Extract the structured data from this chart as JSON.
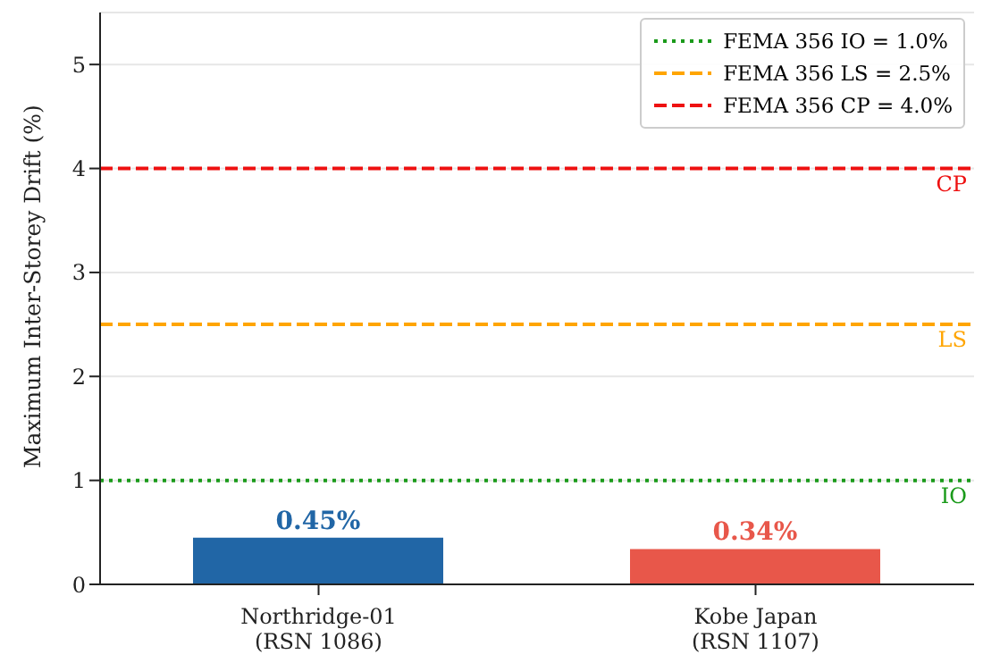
{
  "chart_data": {
    "type": "bar",
    "ylabel": "Maximum Inter-Storey Drift (%)",
    "categories": [
      "Northridge-01\n(RSN 1086)",
      "Kobe Japan\n(RSN 1107)"
    ],
    "values": [
      0.45,
      0.34
    ],
    "colors": [
      "#2166a6",
      "#e8574a"
    ],
    "value_labels": [
      "0.45%",
      "0.34%"
    ],
    "ylim": [
      0,
      5.5
    ],
    "yticks": [
      0,
      1,
      2,
      3,
      4,
      5
    ],
    "grid": "y",
    "legend": "top right",
    "ref_lines": [
      {
        "axis": "y",
        "value": 1,
        "label": "FEMA 356 IO = 1.0%",
        "color": "#1a9a1a",
        "line_style": "dotted"
      },
      {
        "axis": "y",
        "value": 2.5,
        "label": "FEMA 356 LS = 2.5%",
        "color": "#ffa500",
        "line_style": "dashed"
      },
      {
        "axis": "y",
        "value": 4,
        "label": "FEMA 356 CP = 4.0%",
        "color": "#ee1111",
        "line_style": "dashed"
      }
    ],
    "annotations": [
      {
        "text": "IO",
        "y": 1
      },
      {
        "text": "LS",
        "y": 2.5
      },
      {
        "text": "CP",
        "y": 4
      }
    ]
  }
}
